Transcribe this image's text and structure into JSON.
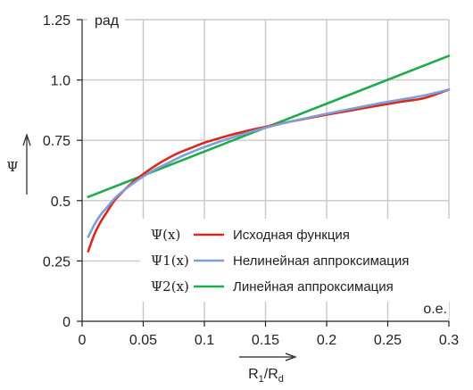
{
  "chart_data": {
    "type": "line",
    "xlabel": "R",
    "xlabel_sub1": "1",
    "xlabel_sep": "/R",
    "xlabel_sub2": "d",
    "xunit": "о.е.",
    "ylabel": "Ψ",
    "yunit": "рад",
    "xlim": [
      0,
      0.3
    ],
    "ylim": [
      0,
      1.25
    ],
    "x_ticks": [
      0,
      0.05,
      0.1,
      0.15,
      0.2,
      0.25,
      0.3
    ],
    "x_tick_labels": [
      "0",
      "0.05",
      "0.1",
      "0.15",
      "0.2",
      "0.25",
      "0.3"
    ],
    "y_ticks": [
      0,
      0.25,
      0.5,
      0.75,
      1.0,
      1.25
    ],
    "y_tick_labels": [
      "0",
      "0.25",
      "0.5",
      "0.75",
      "1.0",
      "1.25"
    ],
    "grid": true,
    "legend_position": "center-right",
    "series": [
      {
        "name": "Исходная функция",
        "symbol": "Ψ(x)",
        "color": "#d62a1e",
        "x": [
          0.005,
          0.01,
          0.015,
          0.02,
          0.025,
          0.03,
          0.04,
          0.05,
          0.06,
          0.07,
          0.08,
          0.09,
          0.1,
          0.11,
          0.12,
          0.13,
          0.14,
          0.15,
          0.16,
          0.17,
          0.18,
          0.2,
          0.22,
          0.24,
          0.26,
          0.28,
          0.3
        ],
        "y": [
          0.29,
          0.36,
          0.41,
          0.45,
          0.49,
          0.52,
          0.57,
          0.61,
          0.645,
          0.675,
          0.7,
          0.72,
          0.74,
          0.755,
          0.77,
          0.783,
          0.795,
          0.806,
          0.817,
          0.827,
          0.837,
          0.856,
          0.874,
          0.892,
          0.909,
          0.925,
          0.96
        ]
      },
      {
        "name": "Нелинейная аппроксимация",
        "symbol": "Ψ1(x)",
        "color": "#7e9ed6",
        "x": [
          0.005,
          0.01,
          0.015,
          0.02,
          0.025,
          0.03,
          0.04,
          0.05,
          0.06,
          0.07,
          0.08,
          0.09,
          0.1,
          0.11,
          0.12,
          0.13,
          0.14,
          0.15,
          0.16,
          0.17,
          0.18,
          0.2,
          0.22,
          0.24,
          0.26,
          0.28,
          0.3
        ],
        "y": [
          0.35,
          0.4,
          0.44,
          0.47,
          0.5,
          0.525,
          0.565,
          0.6,
          0.63,
          0.655,
          0.68,
          0.702,
          0.722,
          0.74,
          0.757,
          0.773,
          0.788,
          0.802,
          0.815,
          0.827,
          0.838,
          0.86,
          0.88,
          0.9,
          0.918,
          0.936,
          0.96
        ]
      },
      {
        "name": "Линейная аппроксимация",
        "symbol": "Ψ2(x)",
        "color": "#1faa4b",
        "x": [
          0.005,
          0.3
        ],
        "y": [
          0.515,
          1.1
        ]
      }
    ]
  }
}
